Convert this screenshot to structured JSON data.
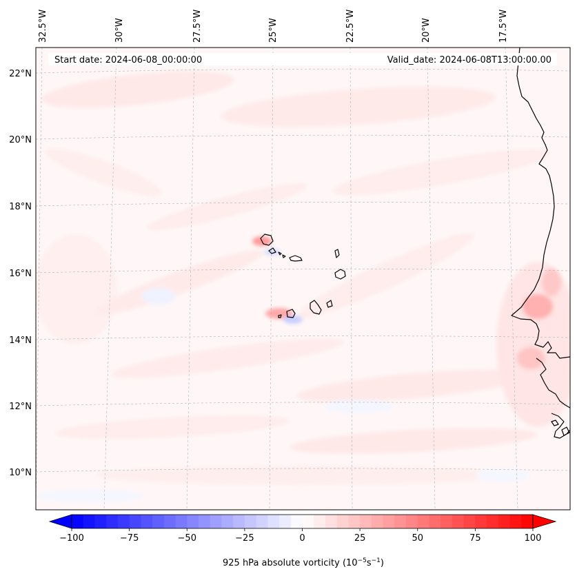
{
  "map": {
    "start_date": "Start date: 2024-06-08_00:00:00",
    "valid_date": "Valid_date: 2024-06-08T13:00:00.00",
    "lon_labels": [
      "32.5°W",
      "30°W",
      "27.5°W",
      "25°W",
      "22.5°W",
      "20°W",
      "17.5°W"
    ],
    "lat_labels": [
      "22°N",
      "20°N",
      "18°N",
      "16°N",
      "14°N",
      "12°N",
      "10°N"
    ],
    "colorbar": {
      "label": "925 hPa absolute vorticity (10",
      "label_exp1": "−5",
      "label_mid": "s",
      "label_exp2": "−1",
      "label_end": ")",
      "ticks": [
        "−100",
        "−75",
        "−50",
        "−25",
        "0",
        "25",
        "50",
        "75",
        "100"
      ],
      "min": -100,
      "max": 100,
      "levels": 40,
      "colormap": "bwr",
      "extend": "both"
    },
    "colors": {
      "coastline": "#000000",
      "gridline": "#b0b0b0",
      "negative": "#0000ff",
      "positive": "#ff0000"
    }
  }
}
